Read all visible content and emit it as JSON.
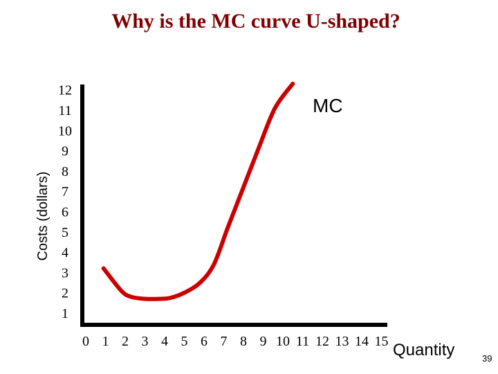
{
  "slide": {
    "title": "Why is the MC curve U-shaped?",
    "page_number": "39",
    "colors": {
      "title": "#800000",
      "curve": "#cc0000",
      "axis": "#000000"
    }
  },
  "chart_data": {
    "type": "line",
    "title": "Why is the MC curve U-shaped?",
    "xlabel": "Quantity",
    "ylabel": "Costs (dollars)",
    "xlim": [
      0,
      15
    ],
    "ylim": [
      0,
      12
    ],
    "x_ticks": [
      "0",
      "1",
      "2",
      "3",
      "4",
      "5",
      "6",
      "7",
      "8",
      "9",
      "10",
      "11",
      "12",
      "13",
      "14",
      "15"
    ],
    "y_ticks": [
      "1",
      "2",
      "3",
      "4",
      "5",
      "6",
      "7",
      "8",
      "9",
      "10",
      "11",
      "12"
    ],
    "grid": false,
    "series": [
      {
        "name": "MC",
        "x": [
          0.9,
          1.8,
          2.3,
          3.0,
          3.8,
          4.3,
          5.0,
          5.8,
          6.5,
          7.2,
          8.0,
          8.8,
          9.6,
          10.5
        ],
        "y": [
          3.2,
          2.1,
          1.8,
          1.7,
          1.7,
          1.75,
          2.0,
          2.5,
          3.4,
          5.2,
          7.2,
          9.2,
          11.1,
          12.3
        ]
      }
    ]
  }
}
